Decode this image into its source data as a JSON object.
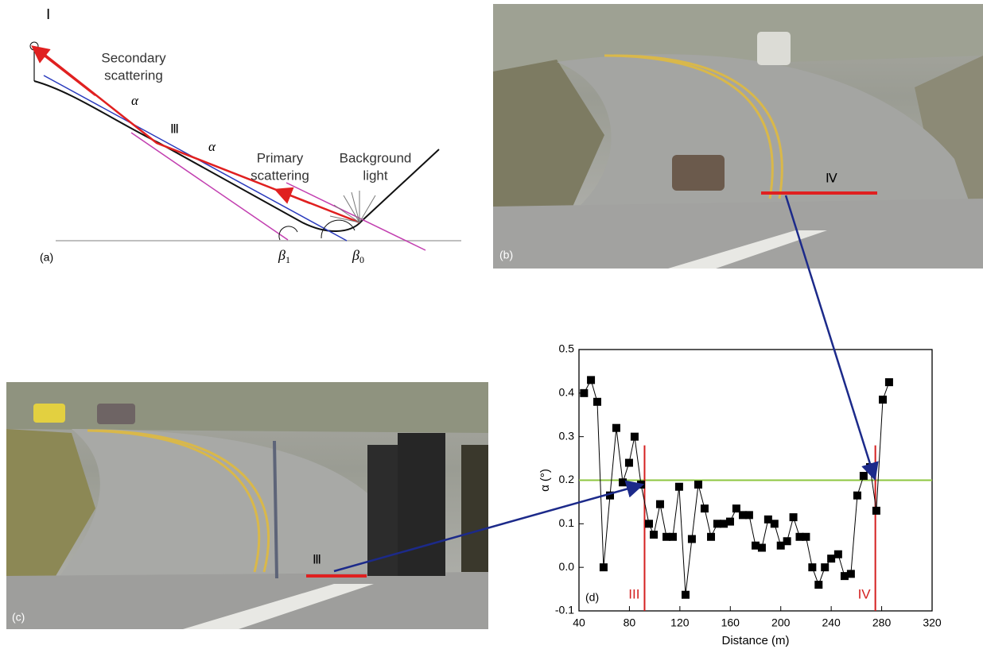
{
  "panels": {
    "a": {
      "label": "(a)",
      "point_i": "Ⅰ",
      "point_iii": "Ⅲ",
      "secondary": [
        "Secondary",
        "scattering"
      ],
      "primary": [
        "Primary",
        "scattering"
      ],
      "background": [
        "Background",
        "light"
      ],
      "alpha": "α",
      "beta1": {
        "symbol": "β",
        "sub": "1"
      },
      "beta0": {
        "symbol": "β",
        "sub": "0"
      }
    },
    "b": {
      "label": "(b)",
      "marker": "Ⅳ"
    },
    "c": {
      "label": "(c)",
      "marker": "Ⅲ"
    }
  },
  "chart_data": {
    "type": "line",
    "panel_label": "(d)",
    "xlabel": "Distance (m)",
    "ylabel": "α (°)",
    "xlim": [
      40,
      320
    ],
    "xticks": [
      40,
      80,
      120,
      160,
      200,
      240,
      280,
      320
    ],
    "ylim": [
      -0.1,
      0.5
    ],
    "yticks": [
      -0.1,
      {
        "value": 0,
        "label": "0.0"
      },
      0.1,
      0.2,
      0.3,
      0.4,
      0.5
    ],
    "series": [
      {
        "color": "#000000",
        "marker": "square",
        "x": [
          44,
          49.5,
          54.5,
          59.5,
          64.6,
          69.6,
          74.7,
          79.7,
          84.1,
          89.2,
          95.5,
          99.3,
          104.3,
          109.4,
          114.4,
          119.4,
          124.5,
          129.5,
          134.6,
          139.6,
          144.7,
          149.7,
          154.8,
          159.8,
          164.8,
          169.9,
          174.9,
          180,
          185,
          190,
          195,
          200,
          205,
          210,
          215,
          220,
          225,
          230,
          235,
          240,
          245.5,
          250.6,
          255.6,
          260.7,
          265.7,
          270.8,
          275.8,
          280.9,
          285.9
        ],
        "values": [
          0.4,
          0.43,
          0.38,
          0.0,
          0.165,
          0.32,
          0.195,
          0.24,
          0.3,
          0.19,
          0.1,
          0.075,
          0.145,
          0.07,
          0.07,
          0.185,
          -0.063,
          0.065,
          0.19,
          0.135,
          0.07,
          0.1,
          0.1,
          0.105,
          0.135,
          0.12,
          0.12,
          0.05,
          0.045,
          0.11,
          0.1,
          0.05,
          0.06,
          0.115,
          0.07,
          0.07,
          0.0,
          -0.04,
          0.0,
          0.02,
          0.03,
          -0.02,
          -0.015,
          0.165,
          0.21,
          0.23,
          0.13,
          0.385,
          0.425
        ]
      }
    ],
    "threshold": {
      "value": 0.2,
      "color": "#8dc63f"
    },
    "markers": [
      {
        "x": 92,
        "label": "III",
        "color": "#d42020"
      },
      {
        "x": 275,
        "label": "IV",
        "color": "#d42020"
      }
    ]
  }
}
